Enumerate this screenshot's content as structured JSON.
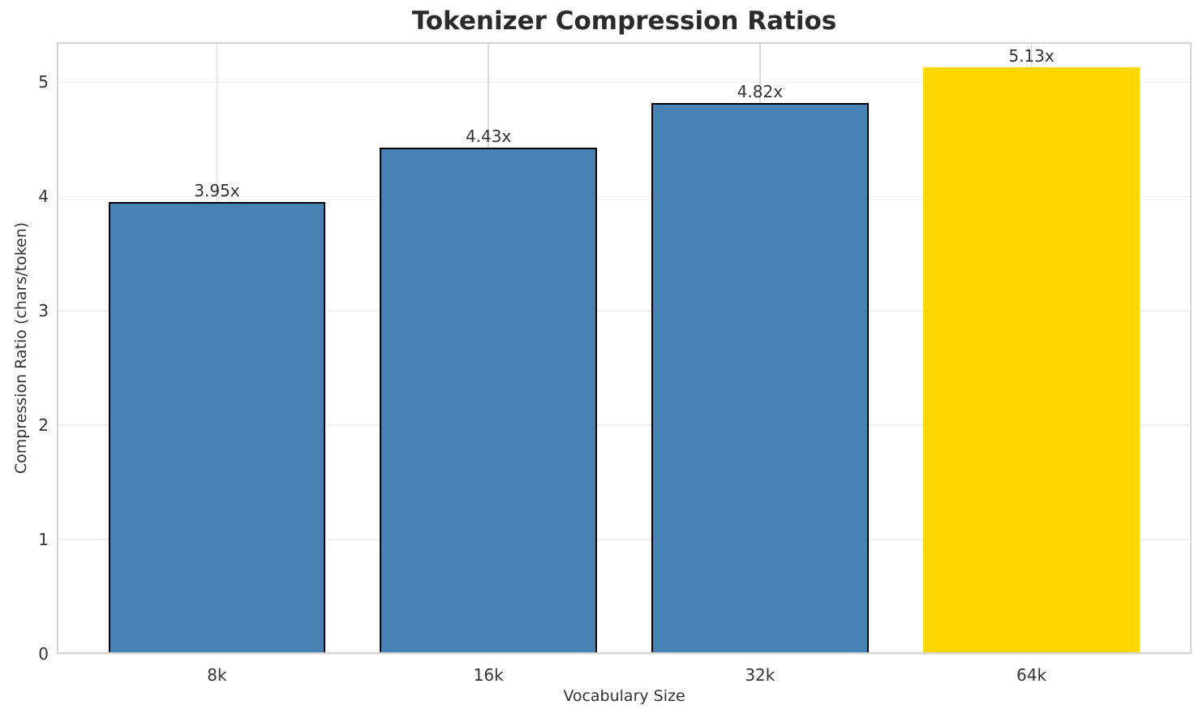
{
  "chart_data": {
    "type": "bar",
    "title": "Tokenizer Compression Ratios",
    "xlabel": "Vocabulary Size",
    "ylabel": "Compression Ratio (chars/token)",
    "categories": [
      "8k",
      "16k",
      "32k",
      "64k"
    ],
    "values": [
      3.95,
      4.43,
      4.82,
      5.13
    ],
    "value_labels": [
      "3.95x",
      "4.43x",
      "4.82x",
      "5.13x"
    ],
    "y_ticks": [
      0,
      1,
      2,
      3,
      4,
      5
    ],
    "ylim": [
      0,
      5.35
    ],
    "grid": "on",
    "legend": "none",
    "bar_colors": [
      "#4682b4",
      "#4682b4",
      "#4682b4",
      "#ffd700"
    ],
    "bar_edge_colors": [
      "#000000",
      "#000000",
      "#000000",
      "none"
    ],
    "highlight_index": 3
  },
  "colors": {
    "background": "#ffffff",
    "title_text": "#2b2b2b",
    "tick_text": "#333333",
    "grid_horizontal": "#efefef",
    "grid_vertical": "#d9d9d9",
    "spine": "#d4d4d4"
  }
}
